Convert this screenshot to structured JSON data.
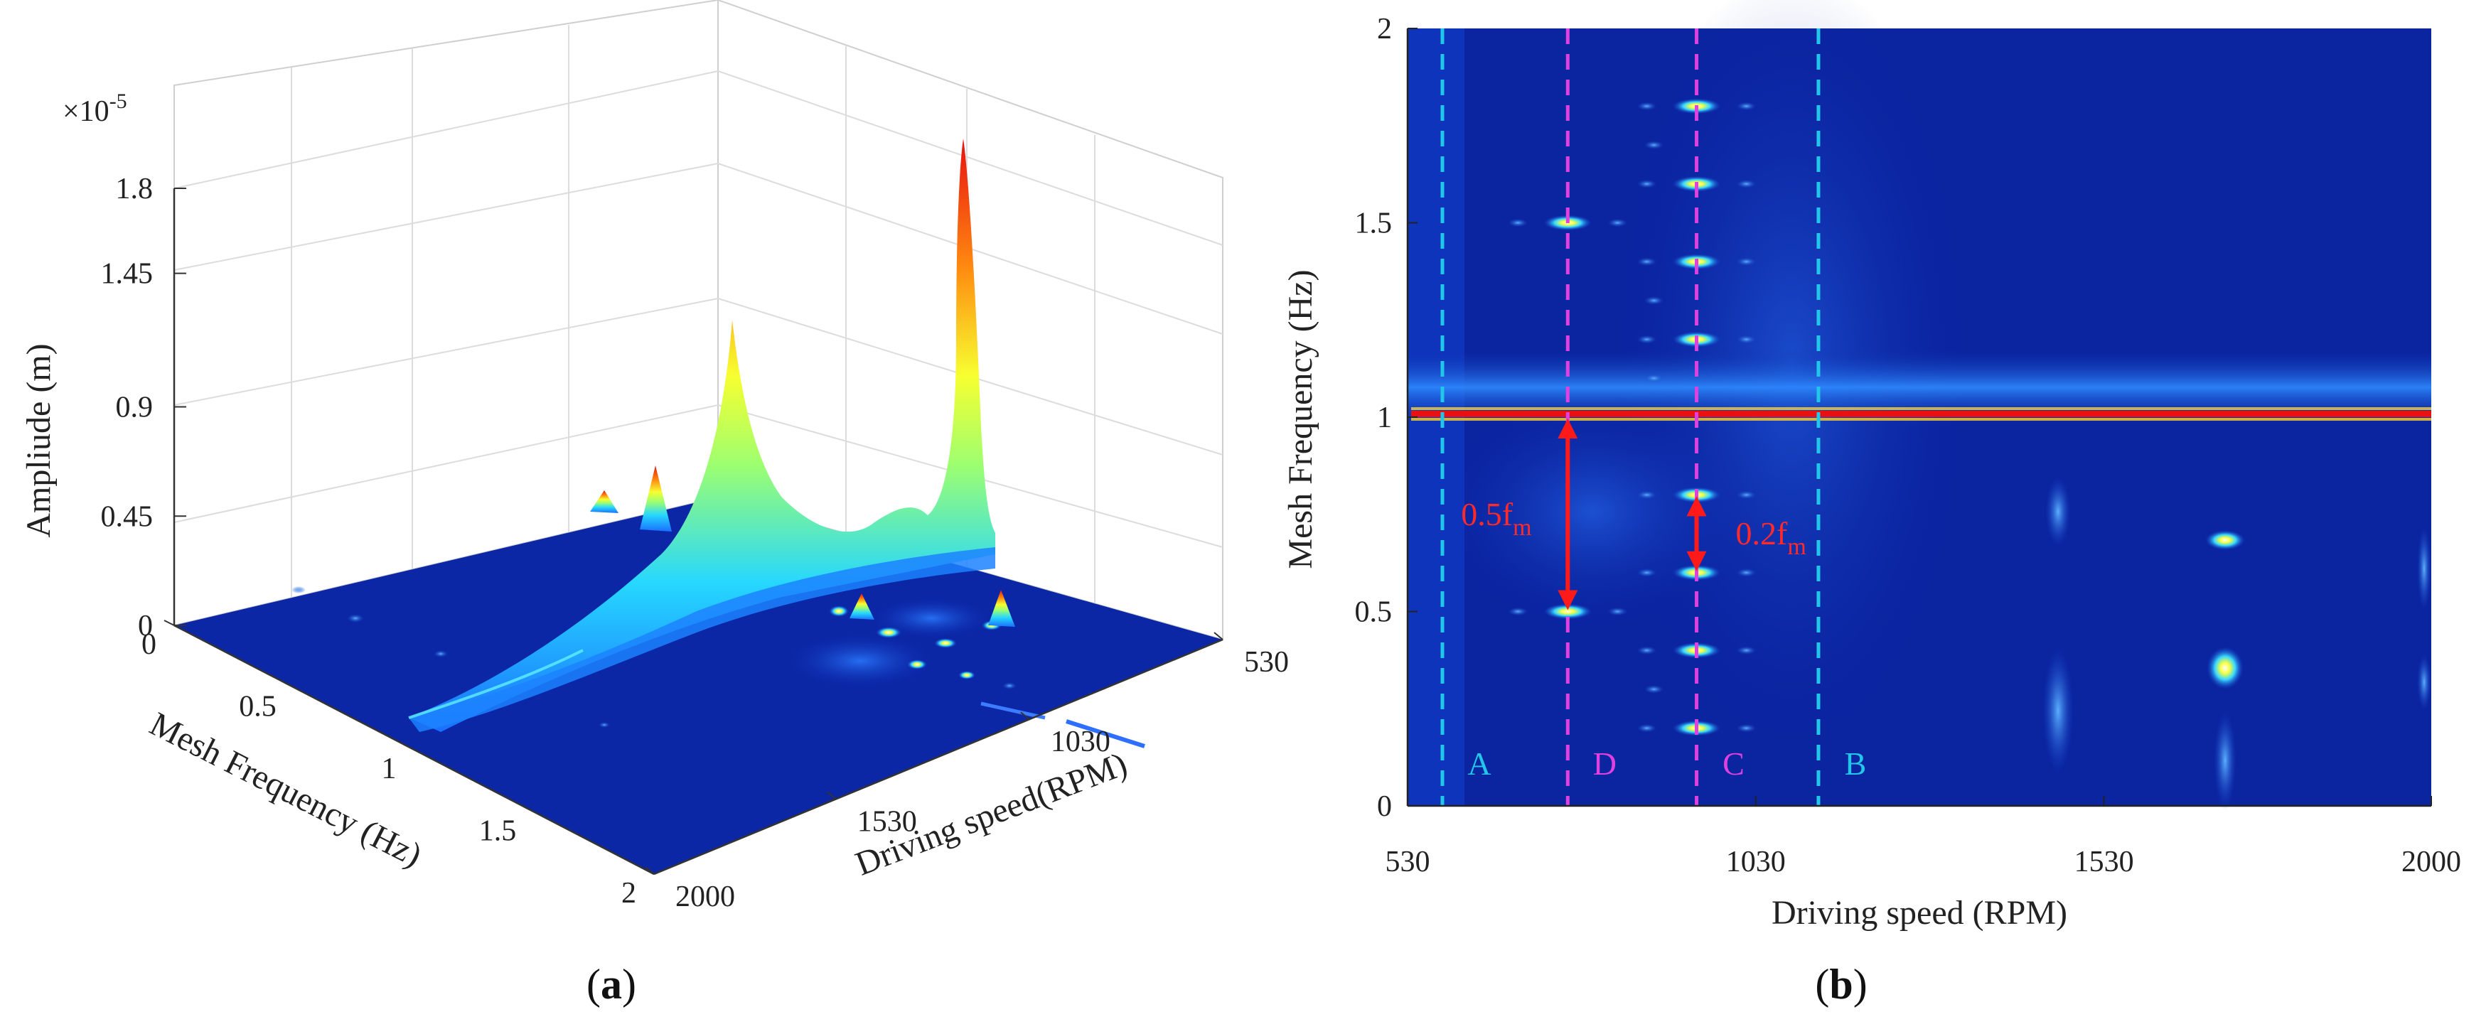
{
  "chart_data": [
    {
      "panel": "(a)",
      "type": "surface3d",
      "zlabel": "Ampliude (m)",
      "xlabel": "Mesh Frequency (Hz)",
      "ylabel": "Driving speed(RPM)",
      "exponent_base": "×10",
      "exponent_power": "-5",
      "z_ticks": [
        "0",
        "0.45",
        "0.9",
        "1.45",
        "1.8"
      ],
      "freq_ticks": [
        "0",
        "0.5",
        "1",
        "1.5",
        "2"
      ],
      "speed_ticks": [
        "2000",
        "1530",
        "1030",
        "530"
      ],
      "zlim": [
        0,
        1.8
      ],
      "freq_range": [
        0,
        2
      ],
      "speed_range": [
        530,
        2000
      ],
      "ridge": {
        "frequency": 1.0,
        "description": "main response along 1x mesh frequency"
      },
      "peaks": [
        {
          "speed": 530,
          "frequency": 1.0,
          "amplitude": 1.8
        },
        {
          "speed": 1030,
          "frequency": 1.0,
          "amplitude": 1.05
        }
      ],
      "colormap": "jet"
    },
    {
      "panel": "(b)",
      "type": "heatmap",
      "xlabel": "Driving speed (RPM)",
      "ylabel": "Mesh Frequency (Hz)",
      "x_ticks": [
        "530",
        "1030",
        "1530",
        "2000"
      ],
      "y_ticks": [
        "0",
        "0.5",
        "1",
        "1.5",
        "2"
      ],
      "xlim": [
        530,
        2000
      ],
      "ylim": [
        0,
        2
      ],
      "colormap": "jet",
      "main_line_frequency": 1.0,
      "zones": [
        {
          "label": "A",
          "speed": 580,
          "color": "#22c6e8"
        },
        {
          "label": "D",
          "speed": 760,
          "color": "#e040e0"
        },
        {
          "label": "C",
          "speed": 945,
          "color": "#e040e0"
        },
        {
          "label": "B",
          "speed": 1120,
          "color": "#22c6e8"
        }
      ],
      "sidebands": [
        {
          "speed": 760,
          "frequencies": [
            0.5,
            1.5
          ]
        },
        {
          "speed": 945,
          "frequencies": [
            0.2,
            0.4,
            0.6,
            0.8,
            1.2,
            1.4,
            1.6,
            1.8
          ]
        }
      ],
      "annotations": [
        {
          "text": "0.5f",
          "subscript": "m",
          "speed": 760,
          "from": 0.5,
          "to": 1.0
        },
        {
          "text": "0.2f",
          "subscript": "m",
          "speed": 945,
          "from": 0.6,
          "to": 0.8
        }
      ]
    }
  ]
}
